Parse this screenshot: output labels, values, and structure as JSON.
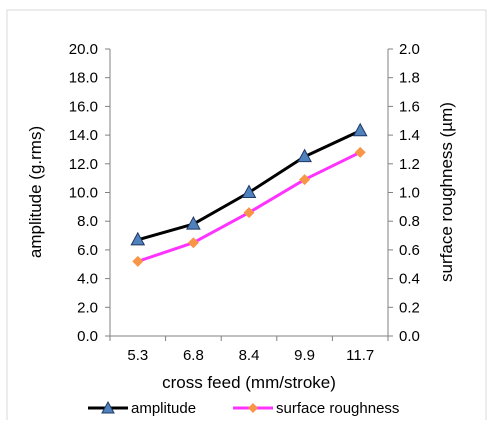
{
  "chart_data": {
    "type": "line",
    "categories": [
      "5.3",
      "6.8",
      "8.4",
      "9.9",
      "11.7"
    ],
    "xlabel": "cross feed (mm/stroke)",
    "ylabel_left": "amplitude (g.rms)",
    "ylabel_right": "surface roughness (µm)",
    "ylim_left": [
      0,
      20
    ],
    "ylim_right": [
      0,
      2
    ],
    "yticks_left": [
      "0.0",
      "2.0",
      "4.0",
      "6.0",
      "8.0",
      "10.0",
      "12.0",
      "14.0",
      "16.0",
      "18.0",
      "20.0"
    ],
    "yticks_right": [
      "0.0",
      "0.2",
      "0.4",
      "0.6",
      "0.8",
      "1.0",
      "1.2",
      "1.4",
      "1.6",
      "1.8",
      "2.0"
    ],
    "grid": false,
    "legend_position": "bottom",
    "series": [
      {
        "name": "amplitude",
        "axis": "left",
        "values": [
          6.7,
          7.8,
          10.0,
          12.5,
          14.3
        ],
        "line_color": "#000000",
        "marker": "triangle",
        "marker_color": "#4f81bd"
      },
      {
        "name": "surface roughness",
        "axis": "right",
        "values": [
          0.52,
          0.65,
          0.86,
          1.09,
          1.28
        ],
        "line_color": "#ff33ff",
        "marker": "diamond",
        "marker_color": "#f79646"
      }
    ]
  }
}
